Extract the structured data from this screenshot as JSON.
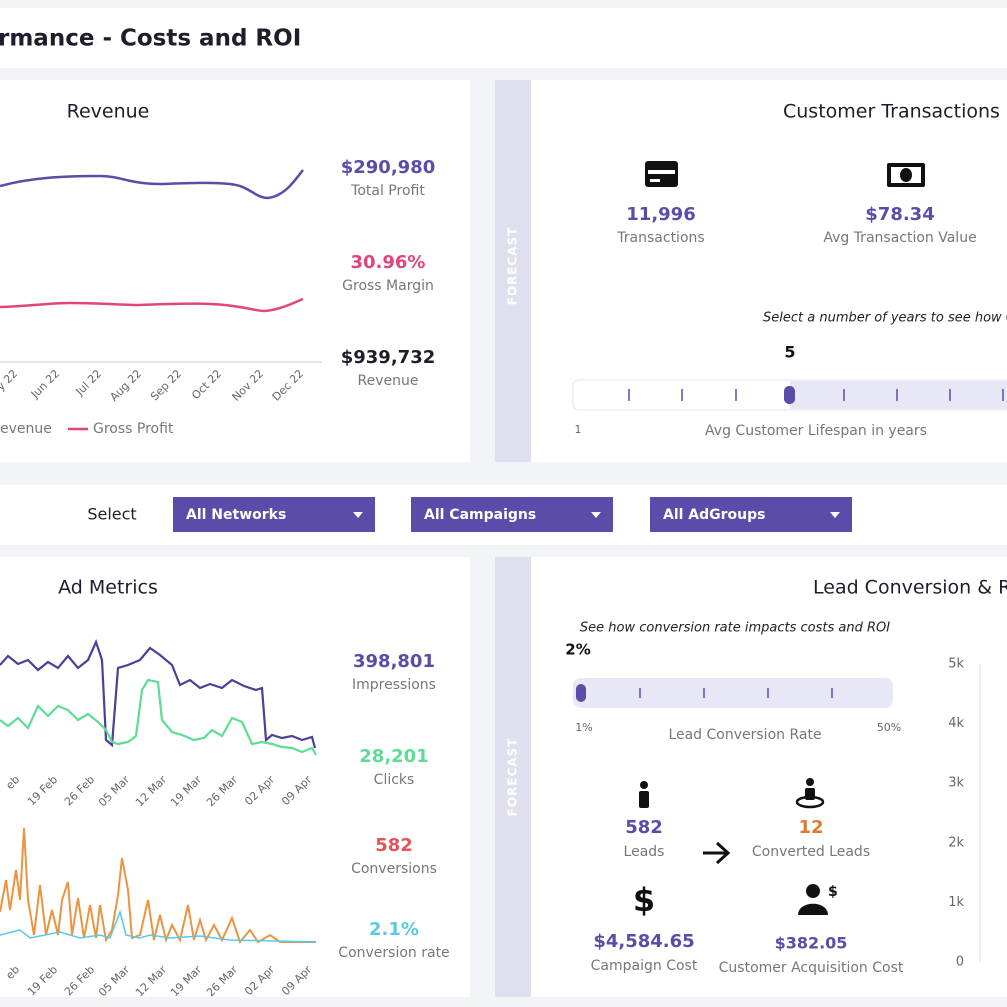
{
  "header": {
    "title": "rmance - Costs and ROI"
  },
  "revenue": {
    "title": "Revenue",
    "x_labels": [
      "y 22",
      "Jun 22",
      "Jul 22",
      "Aug 22",
      "Sep 22",
      "Oct 22",
      "Nov 22",
      "Dec 22"
    ],
    "legend": [
      "evenue",
      "Gross Profit"
    ],
    "stats": [
      {
        "value": "$290,980",
        "label": "Total Profit"
      },
      {
        "value": "30.96%",
        "label": "Gross Margin"
      },
      {
        "value": "$939,732",
        "label": "Revenue"
      }
    ]
  },
  "transactions": {
    "side": "FORECAST",
    "title": "Customer Transactions &",
    "stats": [
      {
        "value": "11,996",
        "label": "Transactions"
      },
      {
        "value": "$78.34",
        "label": "Avg Transaction Value"
      }
    ],
    "note": "Select a number of years to see how CL",
    "slider_value": "5",
    "slider_min": "1",
    "slider_label": "Avg Customer Lifespan in years"
  },
  "filters": {
    "label": "Select",
    "dropdowns": [
      "All Networks",
      "All Campaigns",
      "All AdGroups"
    ]
  },
  "ad_metrics": {
    "title": "Ad Metrics",
    "x_labels": [
      "eb",
      "19 Feb",
      "26 Feb",
      "05 Mar",
      "12 Mar",
      "19 Mar",
      "26 Mar",
      "02 Apr",
      "09 Apr"
    ],
    "stats": [
      {
        "value": "398,801",
        "label": "Impressions"
      },
      {
        "value": "28,201",
        "label": "Clicks"
      },
      {
        "value": "582",
        "label": "Conversions"
      },
      {
        "value": "2.1%",
        "label": "Conversion rate"
      }
    ]
  },
  "lead_conversion": {
    "side": "FORECAST",
    "title": "Lead Conversion & RO",
    "note": "See how conversion rate impacts costs and ROI",
    "slider_value": "2%",
    "slider_min": "1%",
    "slider_max": "50%",
    "slider_label": "Lead Conversion Rate",
    "stats": [
      {
        "value": "582",
        "label": "Leads"
      },
      {
        "value": "12",
        "label": "Converted Leads"
      },
      {
        "value": "$4,584.65",
        "label": "Campaign Cost"
      },
      {
        "value": "$382.05",
        "label": "Customer Acquisition Cost"
      }
    ],
    "y_labels": [
      "5k",
      "4k",
      "3k",
      "2k",
      "1k",
      "0"
    ]
  }
}
